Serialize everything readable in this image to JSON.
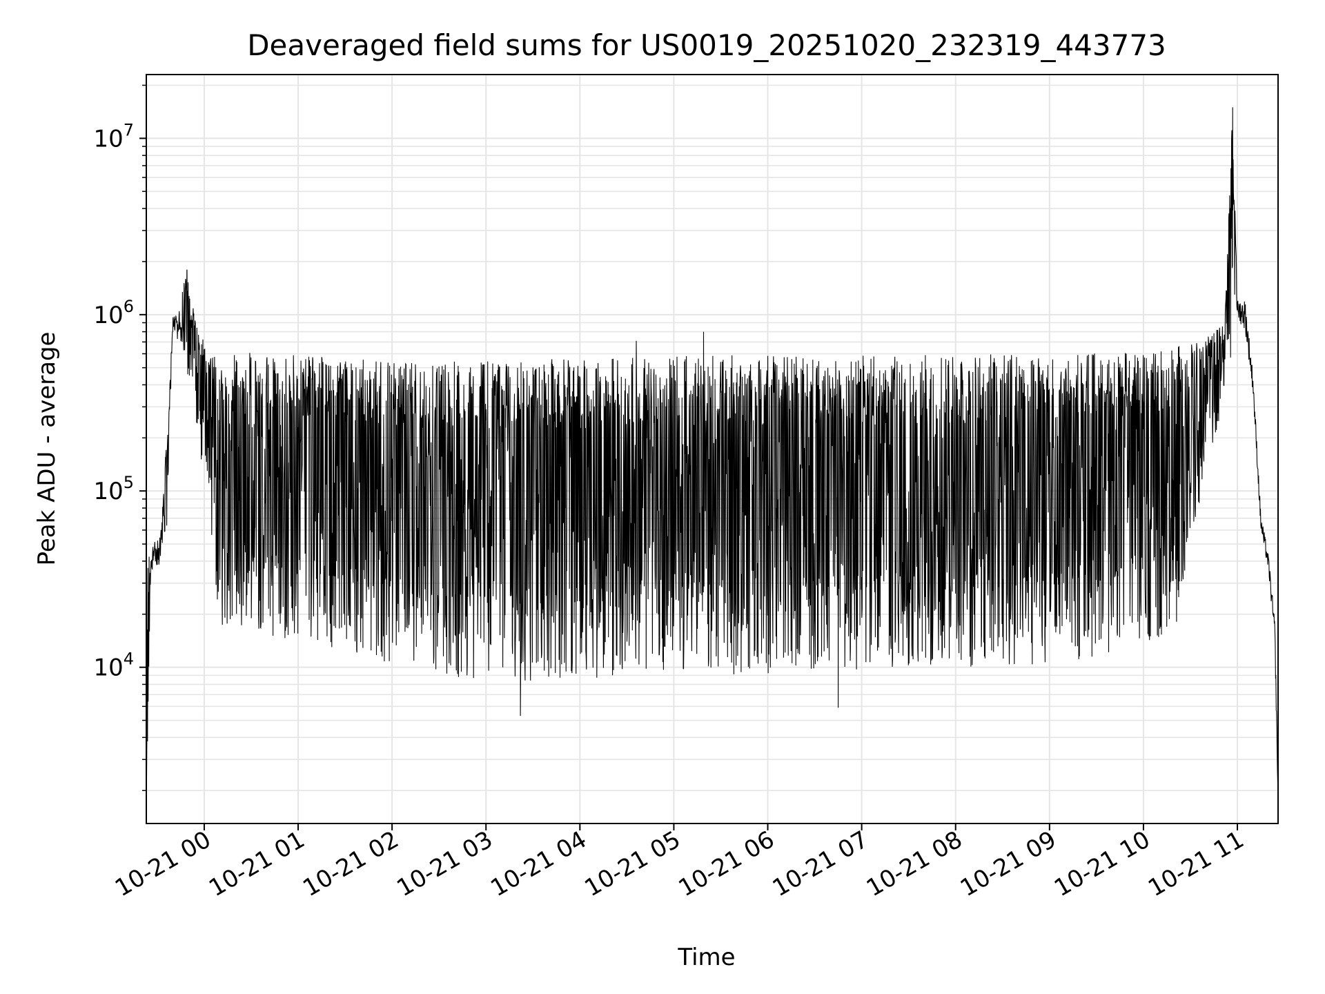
{
  "chart_data": {
    "type": "line",
    "title": "Deaveraged field sums for US0019_20251020_232319_443773",
    "xlabel": "Time",
    "ylabel": "Peak ADU - average",
    "yscale": "log",
    "grid": true,
    "x_range": [
      "10-20 23:23",
      "10-21 11:26"
    ],
    "ylim": [
      1300,
      23000000
    ],
    "x_ticks": [
      "10-21 00",
      "10-21 01",
      "10-21 02",
      "10-21 03",
      "10-21 04",
      "10-21 05",
      "10-21 06",
      "10-21 07",
      "10-21 08",
      "10-21 09",
      "10-21 10",
      "10-21 11"
    ],
    "y_ticks": [
      {
        "base": "10",
        "exp": "4",
        "value": 10000
      },
      {
        "base": "10",
        "exp": "5",
        "value": 100000
      },
      {
        "base": "10",
        "exp": "6",
        "value": 1000000
      },
      {
        "base": "10",
        "exp": "7",
        "value": 10000000
      }
    ],
    "line_color": "#000000",
    "grid_color": "#e5e5e5",
    "envelope": [
      {
        "t": "10-20 23:23",
        "upper": 30000,
        "lower": 1500
      },
      {
        "t": "10-20 23:26",
        "upper": 55000,
        "lower": 28000
      },
      {
        "t": "10-20 23:32",
        "upper": 62000,
        "lower": 30000
      },
      {
        "t": "10-20 23:36",
        "upper": 200000,
        "lower": 60000
      },
      {
        "t": "10-20 23:40",
        "upper": 1100000,
        "lower": 600000
      },
      {
        "t": "10-20 23:45",
        "upper": 1300000,
        "lower": 500000
      },
      {
        "t": "10-20 23:49",
        "upper": 1800000,
        "lower": 450000
      },
      {
        "t": "10-20 23:55",
        "upper": 900000,
        "lower": 250000
      },
      {
        "t": "10-21 00:00",
        "upper": 700000,
        "lower": 100000
      },
      {
        "t": "10-21 00:10",
        "upper": 600000,
        "lower": 17000
      },
      {
        "t": "10-21 00:40",
        "upper": 620000,
        "lower": 15000
      },
      {
        "t": "10-21 01:30",
        "upper": 560000,
        "lower": 12000
      },
      {
        "t": "10-21 02:30",
        "upper": 540000,
        "lower": 9000
      },
      {
        "t": "10-21 03:30",
        "upper": 560000,
        "lower": 8000
      },
      {
        "t": "10-21 04:30",
        "upper": 580000,
        "lower": 9000
      },
      {
        "t": "10-21 05:30",
        "upper": 600000,
        "lower": 9000
      },
      {
        "t": "10-21 06:30",
        "upper": 580000,
        "lower": 9500
      },
      {
        "t": "10-21 07:30",
        "upper": 590000,
        "lower": 9500
      },
      {
        "t": "10-21 08:30",
        "upper": 600000,
        "lower": 10000
      },
      {
        "t": "10-21 09:30",
        "upper": 610000,
        "lower": 11000
      },
      {
        "t": "10-21 10:20",
        "upper": 650000,
        "lower": 16000
      },
      {
        "t": "10-21 10:45",
        "upper": 800000,
        "lower": 200000
      },
      {
        "t": "10-21 10:52",
        "upper": 900000,
        "lower": 300000
      },
      {
        "t": "10-21 10:57",
        "upper": 15000000,
        "lower": 700000
      },
      {
        "t": "10-21 11:00",
        "upper": 1300000,
        "lower": 800000
      },
      {
        "t": "10-21 11:05",
        "upper": 1400000,
        "lower": 600000
      },
      {
        "t": "10-21 11:10",
        "upper": 500000,
        "lower": 300000
      },
      {
        "t": "10-21 11:15",
        "upper": 80000,
        "lower": 50000
      },
      {
        "t": "10-21 11:20",
        "upper": 45000,
        "lower": 30000
      },
      {
        "t": "10-21 11:24",
        "upper": 20000,
        "lower": 10000
      },
      {
        "t": "10-21 11:26",
        "upper": 2000,
        "lower": 1500
      }
    ],
    "annotations": [
      {
        "t": "10-20 23:49",
        "value": 1800000
      },
      {
        "t": "10-21 03:22",
        "value": 5300
      },
      {
        "t": "10-21 04:36",
        "value": 710000
      },
      {
        "t": "10-21 05:19",
        "value": 800000
      },
      {
        "t": "10-21 06:45",
        "value": 5900
      },
      {
        "t": "10-21 10:57",
        "value": 15000000
      }
    ]
  }
}
